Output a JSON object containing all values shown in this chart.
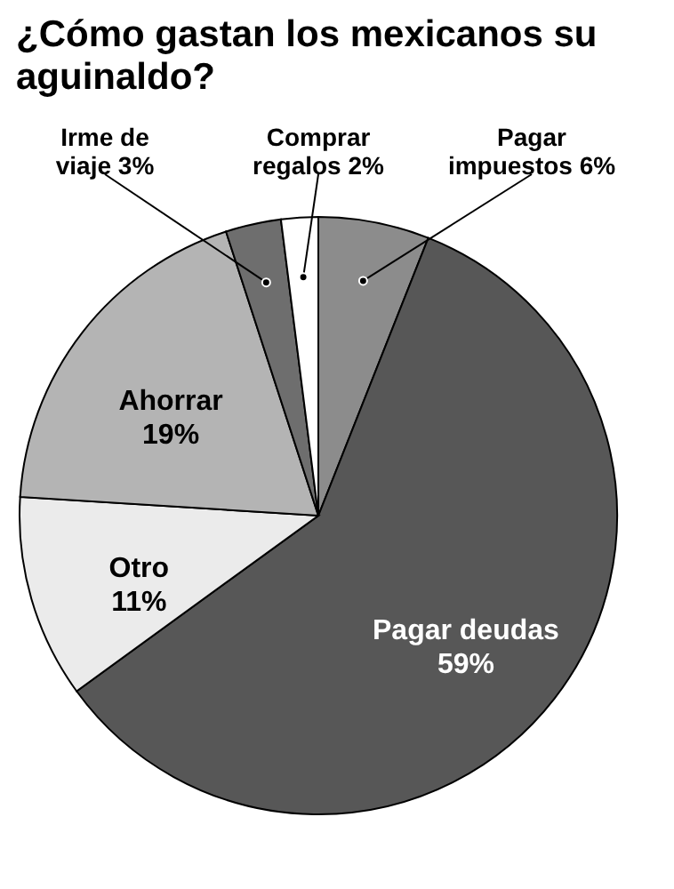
{
  "chart_data": {
    "type": "pie",
    "title": "¿Cómo gastan los mexicanos su aguinaldo?",
    "categories": [
      "Pagar impuestos",
      "Pagar deudas",
      "Otro",
      "Ahorrar",
      "Irme de viaje",
      "Comprar regalos"
    ],
    "values": [
      6,
      59,
      11,
      19,
      3,
      2
    ],
    "colors": [
      "#8c8c8c",
      "#575757",
      "#ebebeb",
      "#b4b4b4",
      "#6e6e6e",
      "#ffffff"
    ],
    "value_labels": [
      "6%",
      "59%",
      "11%",
      "19%",
      "3%",
      "2%"
    ],
    "legend": false
  }
}
